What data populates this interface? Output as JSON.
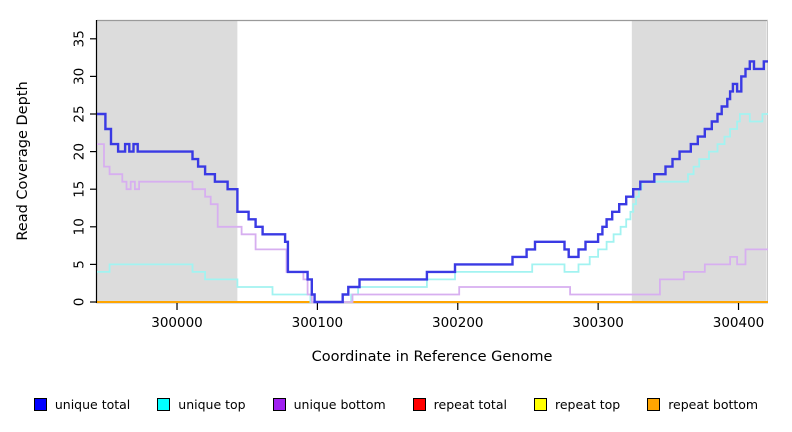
{
  "figure": {
    "xlabel": "Coordinate in Reference Genome",
    "ylabel": "Read Coverage Depth"
  },
  "chart_data": {
    "type": "line",
    "subtype": "step",
    "title": "",
    "xlabel": "Coordinate in Reference Genome",
    "ylabel": "Read Coverage Depth",
    "xlim": [
      299943,
      300421
    ],
    "ylim": [
      0,
      37.5
    ],
    "x_ticks": [
      300000,
      300100,
      300200,
      300300,
      300400
    ],
    "y_ticks": [
      0,
      5,
      10,
      15,
      20,
      25,
      30,
      35
    ],
    "grid": false,
    "legend_position": "bottom",
    "shaded_regions": [
      {
        "x_from": 299943,
        "x_to": 300043,
        "color": "#DCDCDC"
      },
      {
        "x_from": 300324,
        "x_to": 300420,
        "color": "#DCDCDC"
      }
    ],
    "series": [
      {
        "name": "repeat total",
        "line_color": "#FF0000",
        "line_width": 2,
        "points": [
          [
            299943,
            0
          ]
        ]
      },
      {
        "name": "repeat top",
        "line_color": "#FFFF00",
        "line_width": 2,
        "points": [
          [
            299943,
            0
          ]
        ]
      },
      {
        "name": "repeat bottom",
        "line_color": "#FFA500",
        "line_width": 2,
        "points": [
          [
            299943,
            0
          ]
        ]
      },
      {
        "name": "unique top",
        "line_color": "#A2F3F1",
        "line_width": 1.8,
        "points": [
          [
            299943,
            4
          ],
          [
            299952,
            5
          ],
          [
            300011,
            4
          ],
          [
            300020,
            3
          ],
          [
            300043,
            2
          ],
          [
            300068,
            1
          ],
          [
            300095,
            0
          ],
          [
            300124,
            1
          ],
          [
            300129,
            2
          ],
          [
            300178,
            3
          ],
          [
            300198,
            4
          ],
          [
            300253,
            5
          ],
          [
            300276,
            4
          ],
          [
            300286,
            5
          ],
          [
            300294,
            6
          ],
          [
            300300,
            7
          ],
          [
            300306,
            8
          ],
          [
            300311,
            9
          ],
          [
            300316,
            10
          ],
          [
            300320,
            11
          ],
          [
            300323,
            12
          ],
          [
            300325,
            13
          ],
          [
            300327,
            14
          ],
          [
            300329,
            15
          ],
          [
            300331,
            16
          ],
          [
            300364,
            17
          ],
          [
            300368,
            18
          ],
          [
            300372,
            19
          ],
          [
            300379,
            20
          ],
          [
            300385,
            21
          ],
          [
            300390,
            22
          ],
          [
            300394,
            23
          ],
          [
            300399,
            24
          ],
          [
            300401,
            25
          ],
          [
            300408,
            24
          ],
          [
            300417,
            25
          ]
        ]
      },
      {
        "name": "unique bottom",
        "line_color": "#D7AFF0",
        "line_width": 1.8,
        "points": [
          [
            299943,
            21
          ],
          [
            299948,
            18
          ],
          [
            299952,
            17
          ],
          [
            299961,
            16
          ],
          [
            299964,
            15
          ],
          [
            299967,
            16
          ],
          [
            299970,
            15
          ],
          [
            299973,
            16
          ],
          [
            300011,
            15
          ],
          [
            300020,
            14
          ],
          [
            300024,
            13
          ],
          [
            300029,
            10
          ],
          [
            300046,
            9
          ],
          [
            300056,
            7
          ],
          [
            300078,
            4
          ],
          [
            300090,
            3
          ],
          [
            300093,
            1
          ],
          [
            300096,
            0
          ],
          [
            300125,
            1
          ],
          [
            300201,
            2
          ],
          [
            300280,
            1
          ],
          [
            300344,
            3
          ],
          [
            300361,
            4
          ],
          [
            300376,
            5
          ],
          [
            300394,
            6
          ],
          [
            300399,
            5
          ],
          [
            300405,
            7
          ]
        ]
      },
      {
        "name": "unique total",
        "line_color": "#3A3AE4",
        "line_width": 2.4,
        "points": [
          [
            299943,
            25
          ],
          [
            299949,
            23
          ],
          [
            299953,
            21
          ],
          [
            299958,
            20
          ],
          [
            299963,
            21
          ],
          [
            299966,
            20
          ],
          [
            299969,
            21
          ],
          [
            299972,
            20
          ],
          [
            300011,
            19
          ],
          [
            300015,
            18
          ],
          [
            300020,
            17
          ],
          [
            300027,
            16
          ],
          [
            300036,
            15
          ],
          [
            300043,
            12
          ],
          [
            300051,
            11
          ],
          [
            300056,
            10
          ],
          [
            300061,
            9
          ],
          [
            300077,
            8
          ],
          [
            300079,
            4
          ],
          [
            300093,
            3
          ],
          [
            300096,
            1
          ],
          [
            300098,
            0
          ],
          [
            300118,
            1
          ],
          [
            300122,
            2
          ],
          [
            300130,
            3
          ],
          [
            300178,
            4
          ],
          [
            300198,
            5
          ],
          [
            300239,
            6
          ],
          [
            300249,
            7
          ],
          [
            300255,
            8
          ],
          [
            300276,
            7
          ],
          [
            300279,
            6
          ],
          [
            300286,
            7
          ],
          [
            300291,
            8
          ],
          [
            300300,
            9
          ],
          [
            300303,
            10
          ],
          [
            300306,
            11
          ],
          [
            300310,
            12
          ],
          [
            300315,
            13
          ],
          [
            300320,
            14
          ],
          [
            300325,
            15
          ],
          [
            300330,
            16
          ],
          [
            300340,
            17
          ],
          [
            300348,
            18
          ],
          [
            300353,
            19
          ],
          [
            300358,
            20
          ],
          [
            300366,
            21
          ],
          [
            300371,
            22
          ],
          [
            300376,
            23
          ],
          [
            300381,
            24
          ],
          [
            300385,
            25
          ],
          [
            300388,
            26
          ],
          [
            300392,
            27
          ],
          [
            300394,
            28
          ],
          [
            300396,
            29
          ],
          [
            300399,
            28
          ],
          [
            300402,
            30
          ],
          [
            300405,
            31
          ],
          [
            300408,
            32
          ],
          [
            300411,
            31
          ],
          [
            300418,
            32
          ]
        ]
      }
    ]
  },
  "legend": {
    "items": [
      {
        "label": "unique total",
        "color": "#0000FF"
      },
      {
        "label": "unique top",
        "color": "#00FFFF"
      },
      {
        "label": "unique bottom",
        "color": "#A020F0"
      },
      {
        "label": "repeat total",
        "color": "#FF0000"
      },
      {
        "label": "repeat top",
        "color": "#FFFF00"
      },
      {
        "label": "repeat bottom",
        "color": "#FFA500"
      }
    ]
  }
}
